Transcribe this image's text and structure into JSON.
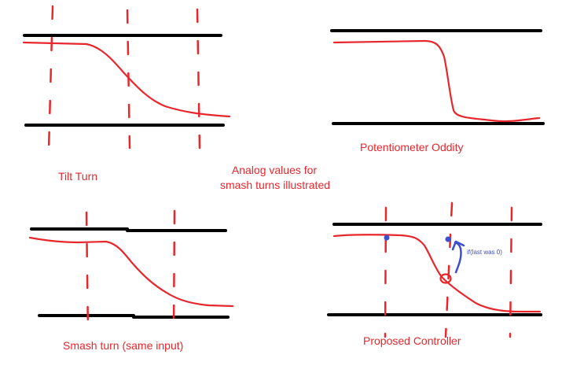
{
  "colors": {
    "ink": "#e8272d",
    "rail": "#000000",
    "annotation": "#3b4fd0",
    "background": "#ffffff"
  },
  "labels": {
    "tilt_turn": "Tilt Turn",
    "potentiometer_oddity": "Potentiometer Oddity",
    "center_line1": "Analog values for",
    "center_line2": "smash turns illustrated",
    "smash_turn": "Smash turn (same input)",
    "proposed_controller": "Proposed Controller",
    "annotation": "if(last was 0)"
  }
}
